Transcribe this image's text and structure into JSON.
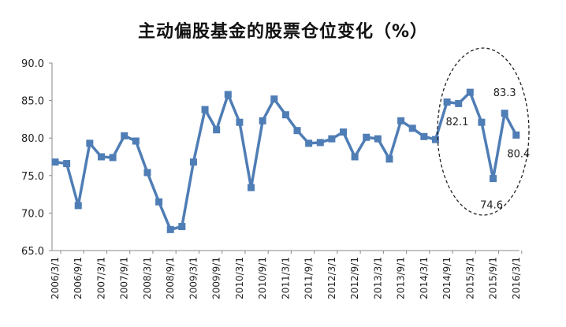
{
  "chart_data": {
    "type": "line",
    "title": "主动偏股基金的股票仓位变化（%）",
    "xlabel": "",
    "ylabel": "",
    "ylim": [
      65,
      90
    ],
    "yticks": [
      "65.0",
      "70.0",
      "75.0",
      "80.0",
      "85.0",
      "90.0"
    ],
    "xtick_labels": [
      "2006/3/1",
      "2006/9/1",
      "2007/3/1",
      "2007/9/1",
      "2008/3/1",
      "2008/9/1",
      "2009/3/1",
      "2009/9/1",
      "2010/3/1",
      "2010/9/1",
      "2011/3/1",
      "2011/9/1",
      "2012/3/1",
      "2012/9/1",
      "2013/3/1",
      "2013/9/1",
      "2014/3/1",
      "2014/9/1",
      "2015/3/1",
      "2015/9/1",
      "2016/3/1"
    ],
    "grid": false,
    "series": [
      {
        "color": "#4F7DB5",
        "marker": "square",
        "values": [
          76.8,
          76.6,
          71.0,
          79.3,
          77.5,
          77.4,
          80.3,
          79.6,
          75.4,
          71.5,
          67.8,
          68.2,
          76.8,
          83.8,
          81.1,
          85.8,
          82.1,
          73.4,
          82.3,
          85.2,
          83.1,
          81.0,
          79.3,
          79.4,
          79.9,
          80.8,
          77.5,
          80.1,
          79.9,
          77.2,
          82.3,
          81.3,
          80.2,
          79.8,
          84.8,
          84.6,
          86.1,
          82.1,
          74.6,
          83.3,
          80.4
        ]
      }
    ],
    "annotations": [
      {
        "text": "82.1",
        "index": 37
      },
      {
        "text": "74.6",
        "index": 38
      },
      {
        "text": "83.3",
        "index": 39
      },
      {
        "text": "80.4",
        "index": 40
      }
    ],
    "highlight": "dashed ellipse around 2014/9/1–2016/3/1"
  }
}
